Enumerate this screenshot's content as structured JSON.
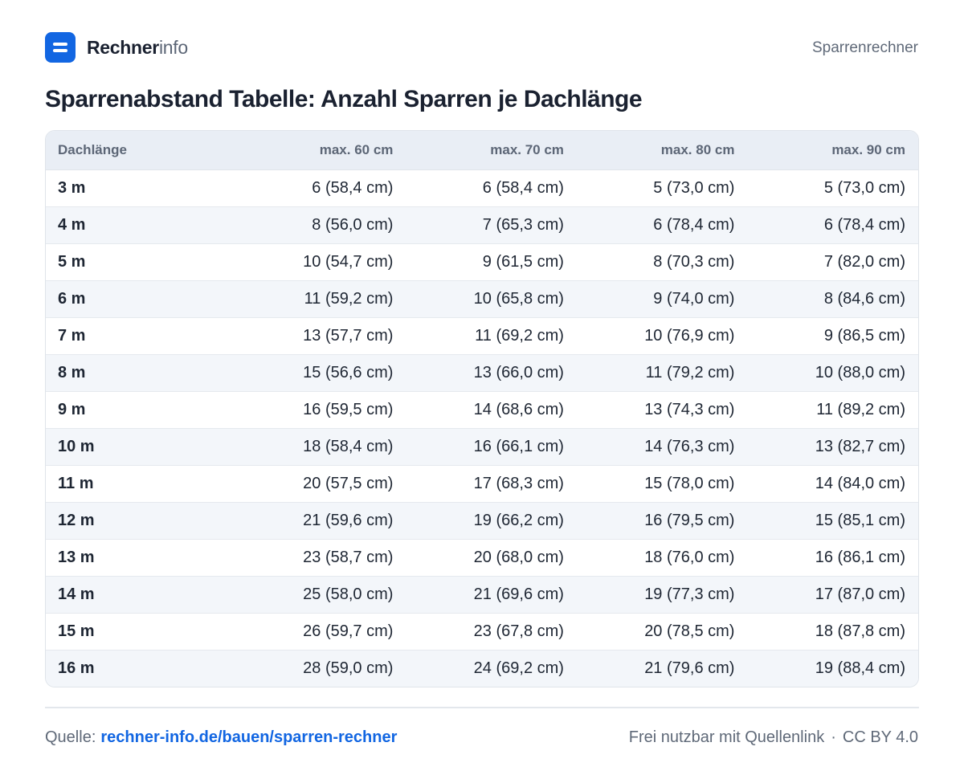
{
  "brand": {
    "name_strong": "Rechner",
    "name_light": "info"
  },
  "header": {
    "section": "Sparrenrechner"
  },
  "title": "Sparrenabstand Tabelle: Anzahl Sparren je Dachlänge",
  "table": {
    "columns": [
      "Dachlänge",
      "max. 60 cm",
      "max. 70 cm",
      "max. 80 cm",
      "max. 90 cm"
    ],
    "rows": [
      [
        "3 m",
        "6 (58,4 cm)",
        "6 (58,4 cm)",
        "5 (73,0 cm)",
        "5 (73,0 cm)"
      ],
      [
        "4 m",
        "8 (56,0 cm)",
        "7 (65,3 cm)",
        "6 (78,4 cm)",
        "6 (78,4 cm)"
      ],
      [
        "5 m",
        "10 (54,7 cm)",
        "9 (61,5 cm)",
        "8 (70,3 cm)",
        "7 (82,0 cm)"
      ],
      [
        "6 m",
        "11 (59,2 cm)",
        "10 (65,8 cm)",
        "9 (74,0 cm)",
        "8 (84,6 cm)"
      ],
      [
        "7 m",
        "13 (57,7 cm)",
        "11 (69,2 cm)",
        "10 (76,9 cm)",
        "9 (86,5 cm)"
      ],
      [
        "8 m",
        "15 (56,6 cm)",
        "13 (66,0 cm)",
        "11 (79,2 cm)",
        "10 (88,0 cm)"
      ],
      [
        "9 m",
        "16 (59,5 cm)",
        "14 (68,6 cm)",
        "13 (74,3 cm)",
        "11 (89,2 cm)"
      ],
      [
        "10 m",
        "18 (58,4 cm)",
        "16 (66,1 cm)",
        "14 (76,3 cm)",
        "13 (82,7 cm)"
      ],
      [
        "11 m",
        "20 (57,5 cm)",
        "17 (68,3 cm)",
        "15 (78,0 cm)",
        "14 (84,0 cm)"
      ],
      [
        "12 m",
        "21 (59,6 cm)",
        "19 (66,2 cm)",
        "16 (79,5 cm)",
        "15 (85,1 cm)"
      ],
      [
        "13 m",
        "23 (58,7 cm)",
        "20 (68,0 cm)",
        "18 (76,0 cm)",
        "16 (86,1 cm)"
      ],
      [
        "14 m",
        "25 (58,0 cm)",
        "21 (69,6 cm)",
        "19 (77,3 cm)",
        "17 (87,0 cm)"
      ],
      [
        "15 m",
        "26 (59,7 cm)",
        "23 (67,8 cm)",
        "20 (78,5 cm)",
        "18 (87,8 cm)"
      ],
      [
        "16 m",
        "28 (59,0 cm)",
        "24 (69,2 cm)",
        "21 (79,6 cm)",
        "19 (88,4 cm)"
      ]
    ]
  },
  "footer": {
    "source_label": "Quelle:",
    "source_link": "rechner-info.de/bauen/sparren-rechner",
    "license_text": "Frei nutzbar mit Quellenlink",
    "separator": "·",
    "license": "CC BY 4.0"
  },
  "colors": {
    "accent": "#1266e2",
    "header_bg": "#e9eef5",
    "stripe_bg": "#f3f6fa"
  },
  "icons": {
    "logo": "equals-logo-icon"
  }
}
